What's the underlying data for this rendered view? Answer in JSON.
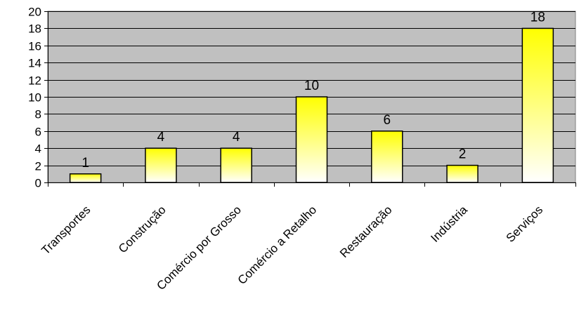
{
  "chart_data": {
    "type": "bar",
    "categories": [
      "Transportes",
      "Construção",
      "Comércio por Grosso",
      "Comércio a Retalho",
      "Restauração",
      "Indústria",
      "Serviços"
    ],
    "values": [
      1,
      4,
      4,
      10,
      6,
      2,
      18
    ],
    "title": "",
    "xlabel": "",
    "ylabel": "",
    "ylim": [
      0,
      20
    ],
    "yticks": [
      0,
      2,
      4,
      6,
      8,
      10,
      12,
      14,
      16,
      18,
      20
    ],
    "grid": true,
    "legend": "none",
    "colors": {
      "plot_background": "#c0c0c0",
      "bar_top": "#ffff00",
      "bar_bottom": "#ffffff",
      "bar_border": "#000000",
      "gridline": "#000000"
    }
  }
}
